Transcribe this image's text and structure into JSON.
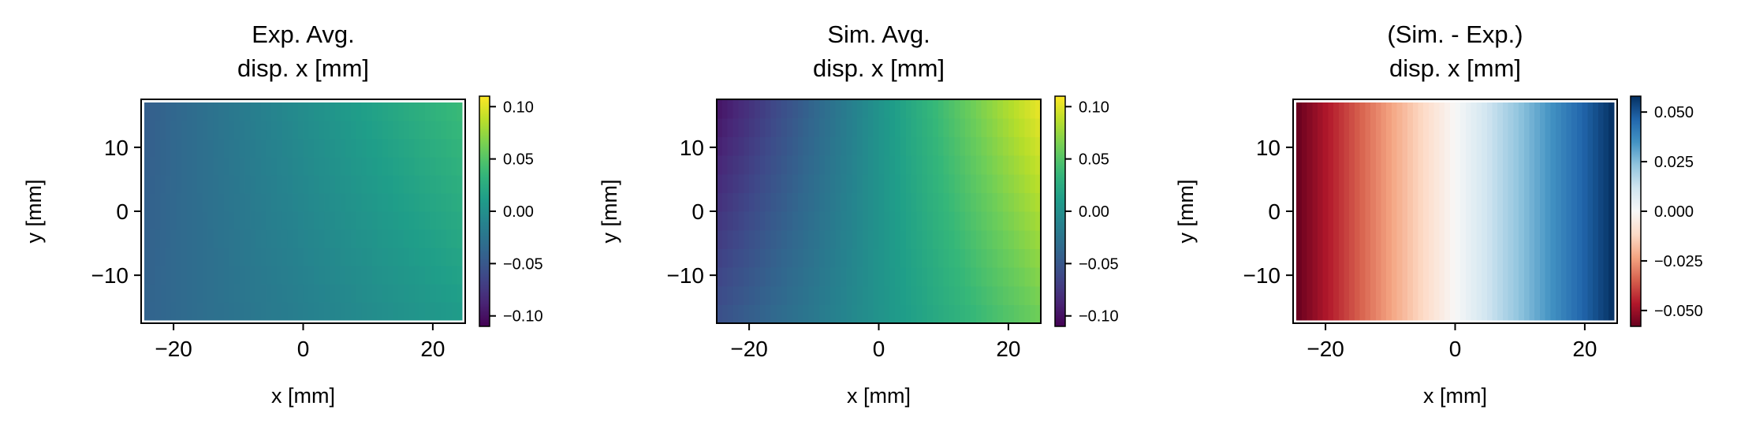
{
  "chart_data": [
    {
      "type": "heatmap",
      "title_line1": "Exp. Avg.",
      "title_line2": "disp. x [mm]",
      "xlabel": "x [mm]",
      "ylabel": "y [mm]",
      "xlim": [
        -25,
        25
      ],
      "ylim": [
        -17.5,
        17.5
      ],
      "data_extent": {
        "x": [
          -24.5,
          24.5
        ],
        "y": [
          -17,
          17
        ]
      },
      "xticks": [
        -20,
        0,
        20
      ],
      "xtick_labels": [
        "−20",
        "0",
        "20"
      ],
      "yticks": [
        10,
        0,
        -10
      ],
      "ytick_labels": [
        "10",
        "0",
        "−10"
      ],
      "colormap": "viridis",
      "colorbar": {
        "vmin": -0.11,
        "vmax": 0.11,
        "ticks": [
          0.1,
          0.05,
          0.0,
          -0.05,
          -0.1
        ],
        "tick_labels": [
          "0.10",
          "0.05",
          "0.00",
          "−0.05",
          "−0.10"
        ]
      },
      "field": {
        "bottom_left": -0.04,
        "top_left": -0.045,
        "bottom_right": 0.01,
        "top_right": 0.04
      }
    },
    {
      "type": "heatmap",
      "title_line1": "Sim. Avg.",
      "title_line2": "disp. x [mm]",
      "xlabel": "x [mm]",
      "ylabel": "y [mm]",
      "xlim": [
        -25,
        25
      ],
      "ylim": [
        -17.5,
        17.5
      ],
      "data_extent": {
        "x": [
          -25,
          25
        ],
        "y": [
          -17.5,
          17.5
        ]
      },
      "xticks": [
        -20,
        0,
        20
      ],
      "xtick_labels": [
        "−20",
        "0",
        "20"
      ],
      "yticks": [
        10,
        0,
        -10
      ],
      "ytick_labels": [
        "10",
        "0",
        "−10"
      ],
      "colormap": "viridis",
      "colorbar": {
        "vmin": -0.11,
        "vmax": 0.11,
        "ticks": [
          0.1,
          0.05,
          0.0,
          -0.05,
          -0.1
        ],
        "tick_labels": [
          "0.10",
          "0.05",
          "0.00",
          "−0.05",
          "−0.10"
        ]
      },
      "field": {
        "bottom_left": -0.055,
        "top_left": -0.1,
        "bottom_right": 0.06,
        "top_right": 0.105
      }
    },
    {
      "type": "heatmap",
      "title_line1": "(Sim. - Exp.)",
      "title_line2": "disp. x [mm]",
      "xlabel": "x [mm]",
      "ylabel": "y [mm]",
      "xlim": [
        -25,
        25
      ],
      "ylim": [
        -17.5,
        17.5
      ],
      "data_extent": {
        "x": [
          -24.5,
          24.5
        ],
        "y": [
          -17,
          17
        ]
      },
      "xticks": [
        -20,
        0,
        20
      ],
      "xtick_labels": [
        "−20",
        "0",
        "20"
      ],
      "yticks": [
        10,
        0,
        -10
      ],
      "ytick_labels": [
        "10",
        "0",
        "−10"
      ],
      "colormap": "RdBu",
      "colorbar": {
        "vmin": -0.058,
        "vmax": 0.058,
        "ticks": [
          0.05,
          0.025,
          0.0,
          -0.025,
          -0.05
        ],
        "tick_labels": [
          "0.050",
          "0.025",
          "0.000",
          "−0.025",
          "−0.050"
        ]
      },
      "field": {
        "bottom_left": -0.058,
        "top_left": -0.058,
        "bottom_right": 0.058,
        "top_right": 0.058
      }
    }
  ]
}
